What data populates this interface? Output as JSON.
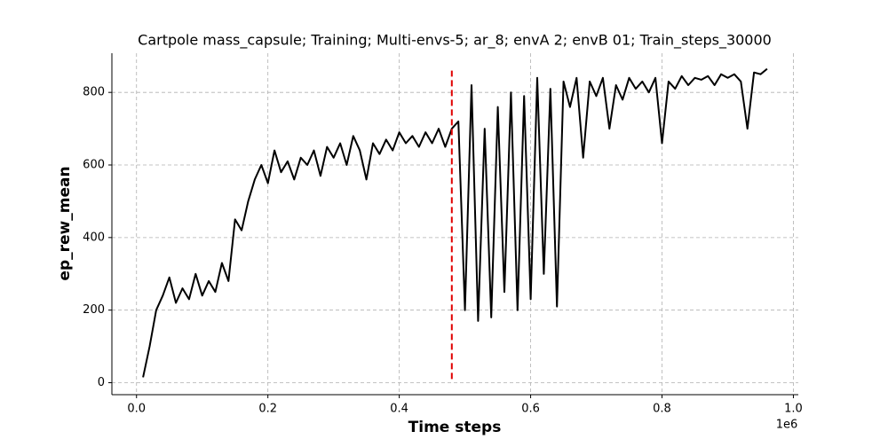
{
  "chart_data": {
    "type": "line",
    "title": "Cartpole mass_capsule; Training; Multi-envs-5; ar_8; envA 2; envB 01; Train_steps_30000",
    "x_label": "Time steps",
    "y_label": "ep_rew_mean",
    "x_offset_label": "1e6",
    "x": [
      0.01,
      0.02,
      0.03,
      0.04,
      0.05,
      0.06,
      0.07,
      0.08,
      0.09,
      0.1,
      0.11,
      0.12,
      0.13,
      0.14,
      0.15,
      0.16,
      0.17,
      0.18,
      0.19,
      0.2,
      0.21,
      0.22,
      0.23,
      0.24,
      0.25,
      0.26,
      0.27,
      0.28,
      0.29,
      0.3,
      0.31,
      0.32,
      0.33,
      0.34,
      0.35,
      0.36,
      0.37,
      0.38,
      0.39,
      0.4,
      0.41,
      0.42,
      0.43,
      0.44,
      0.45,
      0.46,
      0.47,
      0.48,
      0.49,
      0.5,
      0.51,
      0.52,
      0.53,
      0.54,
      0.55,
      0.56,
      0.57,
      0.58,
      0.59,
      0.6,
      0.61,
      0.62,
      0.63,
      0.64,
      0.65,
      0.66,
      0.67,
      0.68,
      0.69,
      0.7,
      0.71,
      0.72,
      0.73,
      0.74,
      0.75,
      0.76,
      0.77,
      0.78,
      0.79,
      0.8,
      0.81,
      0.82,
      0.83,
      0.84,
      0.85,
      0.86,
      0.87,
      0.88,
      0.89,
      0.9,
      0.91,
      0.92,
      0.93,
      0.94,
      0.95,
      0.96
    ],
    "series": [
      {
        "color": "#000000",
        "values": [
          15,
          100,
          200,
          240,
          290,
          220,
          260,
          230,
          300,
          240,
          280,
          250,
          330,
          280,
          450,
          420,
          500,
          560,
          600,
          550,
          640,
          580,
          610,
          560,
          620,
          600,
          640,
          570,
          650,
          620,
          660,
          600,
          680,
          640,
          560,
          660,
          630,
          670,
          640,
          690,
          660,
          680,
          650,
          690,
          660,
          700,
          650,
          700,
          720,
          200,
          820,
          170,
          700,
          180,
          760,
          250,
          800,
          200,
          790,
          230,
          840,
          300,
          810,
          210,
          830,
          760,
          840,
          620,
          830,
          790,
          840,
          700,
          820,
          780,
          840,
          810,
          830,
          800,
          840,
          660,
          830,
          810,
          845,
          820,
          840,
          835,
          845,
          820,
          850,
          840,
          850,
          830,
          700,
          855,
          850,
          865
        ]
      }
    ],
    "vline": {
      "x": 0.48,
      "y": [
        10,
        860
      ],
      "color": "#e00000"
    },
    "xlim": [
      -0.0375,
      1.0075
    ],
    "ylim": [
      -33,
      908
    ],
    "xticks": [
      {
        "value": 0,
        "label": "0.0"
      },
      0.2,
      0.4,
      0.6,
      0.8,
      {
        "value": 1,
        "label": "1.0"
      }
    ],
    "yticks": [
      0,
      200,
      400,
      600,
      800
    ],
    "grid": true
  }
}
